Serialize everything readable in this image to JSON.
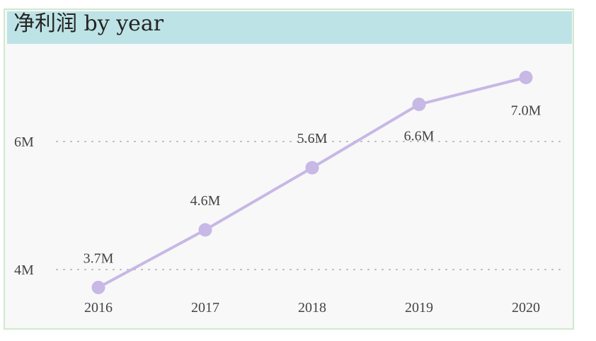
{
  "title": "净利润 by year",
  "colors": {
    "series": "#c7b8e6",
    "title_background": "#bde3e6",
    "card_border": "#cfe9cf",
    "plot_background": "#f8f8f8"
  },
  "chart_data": {
    "type": "line",
    "title": "净利润 by year",
    "xlabel": "",
    "ylabel": "",
    "x": [
      "2016",
      "2017",
      "2018",
      "2019",
      "2020"
    ],
    "series": [
      {
        "values": [
          3.72,
          4.62,
          5.59,
          6.58,
          7.0
        ],
        "labels": [
          "3.7M",
          "4.6M",
          "5.6M",
          "6.6M",
          "7.0M"
        ]
      }
    ],
    "y_ticks": [
      {
        "value": 4,
        "label": "4M"
      },
      {
        "value": 6,
        "label": "6M"
      }
    ],
    "ylim": [
      3.72,
      7.0
    ],
    "grid": true,
    "legend": "none"
  }
}
